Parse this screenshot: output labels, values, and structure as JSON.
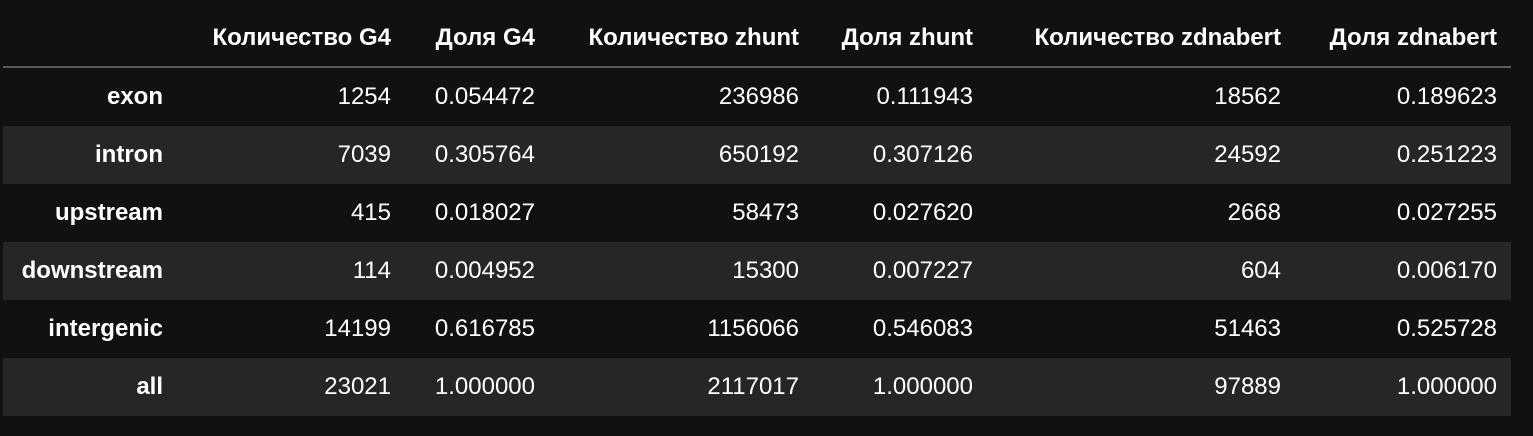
{
  "table": {
    "columns": [
      "",
      "Количество G4",
      "Доля G4",
      "Количество zhunt",
      "Доля zhunt",
      "Количество zdnabert",
      "Доля zdnabert"
    ],
    "rows": [
      {
        "label": "exon",
        "values": [
          "1254",
          "0.054472",
          "236986",
          "0.111943",
          "18562",
          "0.189623"
        ]
      },
      {
        "label": "intron",
        "values": [
          "7039",
          "0.305764",
          "650192",
          "0.307126",
          "24592",
          "0.251223"
        ]
      },
      {
        "label": "upstream",
        "values": [
          "415",
          "0.018027",
          "58473",
          "0.027620",
          "2668",
          "0.027255"
        ]
      },
      {
        "label": "downstream",
        "values": [
          "114",
          "0.004952",
          "15300",
          "0.007227",
          "604",
          "0.006170"
        ]
      },
      {
        "label": "intergenic",
        "values": [
          "14199",
          "0.616785",
          "1156066",
          "0.546083",
          "51463",
          "0.525728"
        ]
      },
      {
        "label": "all",
        "values": [
          "23021",
          "1.000000",
          "2117017",
          "1.000000",
          "97889",
          "1.000000"
        ]
      }
    ]
  }
}
